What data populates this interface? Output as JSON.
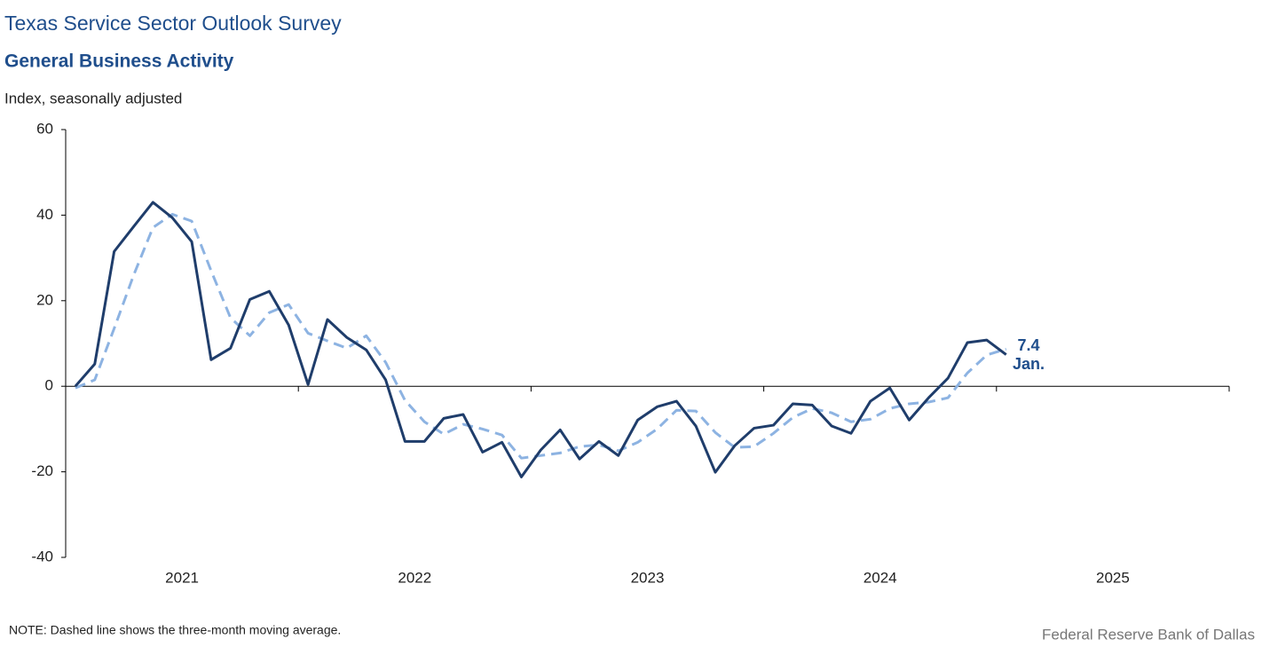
{
  "chart_data": {
    "type": "line",
    "title": "Texas Service Sector Outlook Survey",
    "subtitle": "General Business Activity",
    "ylabel": "Index, seasonally adjusted",
    "note": "NOTE: Dashed line shows the three-month  moving average.",
    "source": "Federal Reserve Bank of Dallas",
    "end_annotation": "Jan.",
    "x": [
      0,
      1,
      2,
      3,
      4,
      5,
      6,
      7,
      8,
      9,
      10,
      11,
      12,
      13,
      14,
      15,
      16,
      17,
      18,
      19,
      20,
      21,
      22,
      23,
      24,
      25,
      26,
      27,
      28,
      29,
      30,
      31,
      32,
      33,
      34,
      35,
      36,
      37,
      38,
      39,
      40,
      41,
      42,
      43,
      44,
      45,
      46,
      47,
      48
    ],
    "xlim": [
      -0.5,
      59.5
    ],
    "xticks": [
      {
        "value": 5.5,
        "label": "2021"
      },
      {
        "value": 17.5,
        "label": "2022"
      },
      {
        "value": 29.5,
        "label": "2023"
      },
      {
        "value": 41.5,
        "label": "2024"
      },
      {
        "value": 53.5,
        "label": "2025"
      }
    ],
    "year_bounds": [
      11.5,
      23.5,
      35.5,
      47.5,
      59.5
    ],
    "ylim": [
      -40,
      60
    ],
    "yticks": [
      -40,
      -20,
      0,
      20,
      40,
      60
    ],
    "series": [
      {
        "name": "Index",
        "color": "#1f3d6b",
        "dashed": false,
        "values": [
          0,
          5.2,
          31.5,
          37.3,
          43,
          39.4,
          33.8,
          6.2,
          8.9,
          20.3,
          22.2,
          14.3,
          0.4,
          15.6,
          11.4,
          8.5,
          1.5,
          -12.9,
          -12.9,
          -7.5,
          -6.6,
          -15.4,
          -13.1,
          -21.2,
          -14.9,
          -10.2,
          -17,
          -12.9,
          -16.2,
          -7.9,
          -4.8,
          -3.5,
          -9.3,
          -20.1,
          -13.9,
          -9.8,
          -9.1,
          -4.1,
          -4.4,
          -9.3,
          -11,
          -3.5,
          -0.4,
          -7.9,
          -2.7,
          1.9,
          10.2,
          10.8,
          7.4
        ]
      },
      {
        "name": "Three-month moving average",
        "color": "#8db3e2",
        "dashed": true,
        "values": [
          -0.4,
          1.5,
          13.5,
          25.9,
          37.1,
          40.2,
          38.6,
          27,
          16,
          11.8,
          17.2,
          19.1,
          12.4,
          10.6,
          8.9,
          11.8,
          5.6,
          -3.3,
          -8.3,
          -11.2,
          -8.9,
          -10,
          -11.4,
          -16.8,
          -16.2,
          -15.6,
          -14.1,
          -13.7,
          -15.1,
          -13.1,
          -10,
          -5.6,
          -5.8,
          -10.8,
          -14.3,
          -14.1,
          -11,
          -7.3,
          -5.2,
          -6.2,
          -8.3,
          -7.7,
          -5.2,
          -4.1,
          -3.7,
          -2.7,
          3.1,
          7.3,
          8.7
        ]
      }
    ]
  }
}
